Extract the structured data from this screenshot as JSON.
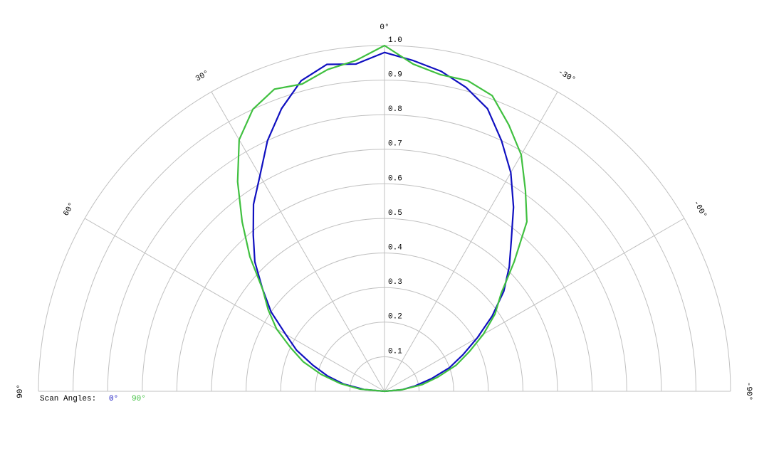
{
  "chart_data": {
    "type": "polar",
    "angle_ticks": [
      {
        "value": 90,
        "label": "90°"
      },
      {
        "value": 60,
        "label": "60°"
      },
      {
        "value": 30,
        "label": "30°"
      },
      {
        "value": 0,
        "label": "0°"
      },
      {
        "value": -30,
        "label": "-30°"
      },
      {
        "value": -60,
        "label": "-60°"
      },
      {
        "value": -90,
        "label": "-90°"
      }
    ],
    "rlim": [
      0,
      1
    ],
    "rticks": [
      0.1,
      0.2,
      0.3,
      0.4,
      0.5,
      0.6,
      0.7,
      0.8,
      0.9,
      {
        "value": 1,
        "label": "1.0"
      }
    ],
    "grid": true,
    "legend_title": "Scan Angles:",
    "angles": [
      90,
      85,
      80,
      75,
      70,
      65,
      60,
      55,
      50,
      45,
      40,
      35,
      30,
      25,
      20,
      15,
      10,
      5,
      0,
      -5,
      -10,
      -15,
      -20,
      -25,
      -30,
      -35,
      -40,
      -45,
      -50,
      -55,
      -60,
      -65,
      -70,
      -75,
      -80,
      -85,
      -90
    ],
    "series": [
      {
        "name": "0°",
        "color": "#1010c0",
        "values": [
          0,
          0.06,
          0.12,
          0.17,
          0.22,
          0.28,
          0.33,
          0.4,
          0.46,
          0.53,
          0.59,
          0.66,
          0.72,
          0.8,
          0.87,
          0.93,
          0.96,
          0.95,
          0.98,
          0.96,
          0.94,
          0.91,
          0.87,
          0.8,
          0.73,
          0.65,
          0.57,
          0.51,
          0.45,
          0.38,
          0.31,
          0.25,
          0.2,
          0.14,
          0.09,
          0.05,
          0
        ]
      },
      {
        "name": "90°",
        "color": "#40c040",
        "values": [
          0,
          0.07,
          0.13,
          0.19,
          0.25,
          0.3,
          0.36,
          0.41,
          0.46,
          0.55,
          0.64,
          0.74,
          0.84,
          0.9,
          0.93,
          0.92,
          0.945,
          0.96,
          1.0,
          0.95,
          0.93,
          0.93,
          0.91,
          0.85,
          0.79,
          0.71,
          0.64,
          0.53,
          0.44,
          0.39,
          0.33,
          0.27,
          0.22,
          0.16,
          0.11,
          0.05,
          0
        ]
      }
    ]
  }
}
